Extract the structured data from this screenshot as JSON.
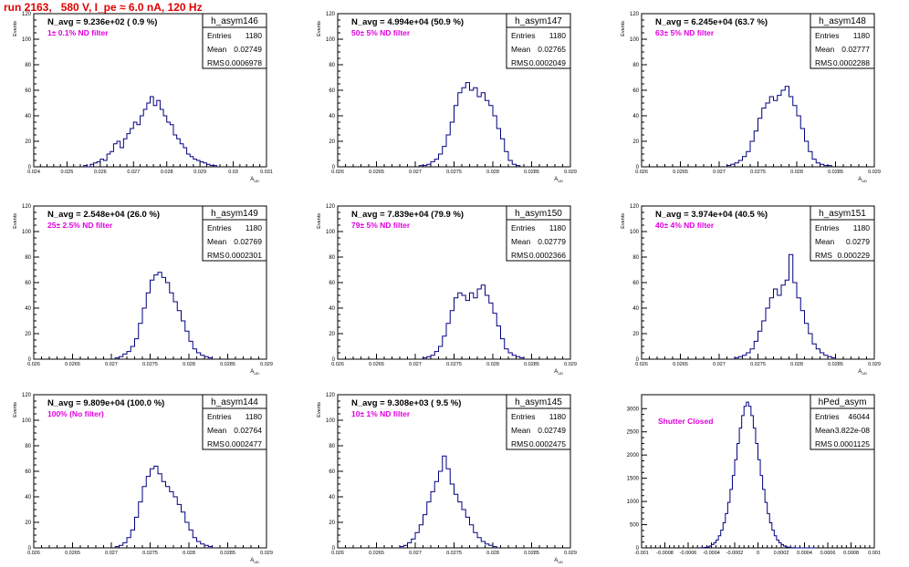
{
  "title": "run 2163,   580 V, I_pe ≈ 6.0 nA, 120 Hz",
  "colors": {
    "title": "#e00000",
    "hist": "#000080",
    "annotation": "#e000e0",
    "frame": "#000000"
  },
  "panels": [
    {
      "name": "h_asym146",
      "entries": "1180",
      "mean": "0.02749",
      "rms": "0.0006978",
      "navg": "N_avg = 9.236e+02 ( 0.9 %)",
      "filter": "1± 0.1% ND filter",
      "ylabel": "Events",
      "xlabel": "A_UD",
      "ymax": 120,
      "yticks": [
        0,
        20,
        40,
        60,
        80,
        100,
        120
      ],
      "xmin": 0.024,
      "xmax": 0.031,
      "xticks": [
        0.024,
        0.025,
        0.026,
        0.027,
        0.028,
        0.029,
        0.03,
        0.031
      ],
      "xtick_labels": [
        "0.024",
        "0.025",
        "0.026",
        "0.027",
        "0.028",
        "0.029",
        "0.03",
        "0.031"
      ],
      "chart_data": {
        "type": "bar",
        "x_start": 0.0255,
        "bin_width": 0.0001,
        "values": [
          1,
          0,
          2,
          3,
          4,
          6,
          5,
          10,
          12,
          18,
          20,
          15,
          22,
          26,
          30,
          35,
          33,
          40,
          45,
          50,
          55,
          48,
          52,
          45,
          40,
          35,
          33,
          25,
          22,
          18,
          15,
          10,
          8,
          6,
          5,
          4,
          3,
          2,
          1,
          1
        ]
      }
    },
    {
      "name": "h_asym147",
      "entries": "1180",
      "mean": "0.02765",
      "rms": "0.0002049",
      "navg": "N_avg = 4.994e+04 (50.9 %)",
      "filter": "50± 5% ND filter",
      "ylabel": "Events",
      "xlabel": "A_UD",
      "ymax": 120,
      "yticks": [
        0,
        20,
        40,
        60,
        80,
        100,
        120
      ],
      "xmin": 0.026,
      "xmax": 0.029,
      "xticks": [
        0.026,
        0.0265,
        0.027,
        0.0275,
        0.028,
        0.0285,
        0.029
      ],
      "xtick_labels": [
        "0.026",
        "0.0265",
        "0.027",
        "0.0275",
        "0.028",
        "0.0285",
        "0.029"
      ],
      "chart_data": {
        "type": "bar",
        "x_start": 0.02705,
        "bin_width": 5e-05,
        "values": [
          1,
          1,
          2,
          4,
          6,
          10,
          16,
          25,
          35,
          48,
          58,
          62,
          66,
          60,
          62,
          55,
          58,
          52,
          48,
          40,
          30,
          22,
          12,
          5,
          2,
          1
        ]
      }
    },
    {
      "name": "h_asym148",
      "entries": "1180",
      "mean": "0.02777",
      "rms": "0.0002288",
      "navg": "N_avg = 6.245e+04 (63.7 %)",
      "filter": "63± 5% ND filter",
      "ylabel": "Events",
      "xlabel": "A_UD",
      "ymax": 120,
      "yticks": [
        0,
        20,
        40,
        60,
        80,
        100,
        120
      ],
      "xmin": 0.026,
      "xmax": 0.029,
      "xticks": [
        0.026,
        0.0265,
        0.027,
        0.0275,
        0.028,
        0.0285,
        0.029
      ],
      "xtick_labels": [
        "0.026",
        "0.0265",
        "0.027",
        "0.0275",
        "0.028",
        "0.0285",
        "0.029"
      ],
      "chart_data": {
        "type": "bar",
        "x_start": 0.0271,
        "bin_width": 5e-05,
        "values": [
          1,
          2,
          3,
          5,
          8,
          12,
          20,
          28,
          38,
          46,
          50,
          55,
          52,
          56,
          60,
          63,
          55,
          48,
          40,
          30,
          20,
          12,
          6,
          3,
          2,
          1,
          1
        ]
      }
    },
    {
      "name": "h_asym149",
      "entries": "1180",
      "mean": "0.02769",
      "rms": "0.0002301",
      "navg": "N_avg = 2.548e+04 (26.0 %)",
      "filter": "25± 2.5% ND filter",
      "ylabel": "Events",
      "xlabel": "A_UD",
      "ymax": 120,
      "yticks": [
        0,
        20,
        40,
        60,
        80,
        100,
        120
      ],
      "xmin": 0.026,
      "xmax": 0.029,
      "xticks": [
        0.026,
        0.0265,
        0.027,
        0.0275,
        0.028,
        0.0285,
        0.029
      ],
      "xtick_labels": [
        "0.026",
        "0.0265",
        "0.027",
        "0.0275",
        "0.028",
        "0.0285",
        "0.029"
      ],
      "chart_data": {
        "type": "bar",
        "x_start": 0.02705,
        "bin_width": 5e-05,
        "values": [
          1,
          2,
          4,
          6,
          10,
          16,
          28,
          40,
          52,
          62,
          66,
          68,
          64,
          60,
          52,
          45,
          38,
          30,
          22,
          14,
          8,
          5,
          3,
          2,
          1
        ]
      }
    },
    {
      "name": "h_asym150",
      "entries": "1180",
      "mean": "0.02779",
      "rms": "0.0002366",
      "navg": "N_avg = 7.839e+04 (79.9 %)",
      "filter": "79± 5% ND filter",
      "ylabel": "Events",
      "xlabel": "A_UD",
      "ymax": 120,
      "yticks": [
        0,
        20,
        40,
        60,
        80,
        100,
        120
      ],
      "xmin": 0.026,
      "xmax": 0.029,
      "xticks": [
        0.026,
        0.0265,
        0.027,
        0.0275,
        0.028,
        0.0285,
        0.029
      ],
      "xtick_labels": [
        "0.026",
        "0.0265",
        "0.027",
        "0.0275",
        "0.028",
        "0.0285",
        "0.029"
      ],
      "chart_data": {
        "type": "bar",
        "x_start": 0.0271,
        "bin_width": 5e-05,
        "values": [
          1,
          2,
          3,
          6,
          10,
          18,
          28,
          38,
          48,
          52,
          50,
          46,
          52,
          48,
          55,
          58,
          50,
          44,
          36,
          26,
          16,
          8,
          5,
          3,
          2,
          1
        ]
      }
    },
    {
      "name": "h_asym151",
      "entries": "1180",
      "mean": "0.0279",
      "rms": "0.000229",
      "navg": "N_avg = 3.974e+04 (40.5 %)",
      "filter": "40± 4% ND filter",
      "ylabel": "Events",
      "xlabel": "A_UD",
      "ymax": 120,
      "yticks": [
        0,
        20,
        40,
        60,
        80,
        100,
        120
      ],
      "xmin": 0.026,
      "xmax": 0.029,
      "xticks": [
        0.026,
        0.0265,
        0.027,
        0.0275,
        0.028,
        0.0285,
        0.029
      ],
      "xtick_labels": [
        "0.026",
        "0.0265",
        "0.027",
        "0.0275",
        "0.028",
        "0.0285",
        "0.029"
      ],
      "chart_data": {
        "type": "bar",
        "x_start": 0.0272,
        "bin_width": 5e-05,
        "values": [
          1,
          2,
          3,
          5,
          8,
          14,
          22,
          30,
          40,
          48,
          55,
          50,
          58,
          62,
          82,
          60,
          48,
          38,
          28,
          20,
          12,
          8,
          5,
          3,
          2,
          1
        ]
      }
    },
    {
      "name": "h_asym144",
      "entries": "1180",
      "mean": "0.02764",
      "rms": "0.0002477",
      "navg": "N_avg = 9.809e+04 (100.0 %)",
      "filter": "100% (No filter)",
      "ylabel": "Events",
      "xlabel": "A_UD",
      "ymax": 120,
      "yticks": [
        0,
        20,
        40,
        60,
        80,
        100,
        120
      ],
      "xmin": 0.026,
      "xmax": 0.029,
      "xticks": [
        0.026,
        0.0265,
        0.027,
        0.0275,
        0.028,
        0.0285,
        0.029
      ],
      "xtick_labels": [
        "0.026",
        "0.0265",
        "0.027",
        "0.0275",
        "0.028",
        "0.0285",
        "0.029"
      ],
      "chart_data": {
        "type": "bar",
        "x_start": 0.02705,
        "bin_width": 5e-05,
        "values": [
          1,
          2,
          4,
          8,
          14,
          24,
          36,
          48,
          56,
          62,
          64,
          58,
          52,
          48,
          44,
          40,
          34,
          28,
          20,
          14,
          8,
          5,
          3,
          2,
          1
        ]
      }
    },
    {
      "name": "h_asym145",
      "entries": "1180",
      "mean": "0.02749",
      "rms": "0.0002475",
      "navg": "N_avg = 9.308e+03 ( 9.5 %)",
      "filter": "10± 1% ND filter",
      "ylabel": "Events",
      "xlabel": "A_UD",
      "ymax": 120,
      "yticks": [
        0,
        20,
        40,
        60,
        80,
        100,
        120
      ],
      "xmin": 0.026,
      "xmax": 0.029,
      "xticks": [
        0.026,
        0.0265,
        0.027,
        0.0275,
        0.028,
        0.0285,
        0.029
      ],
      "xtick_labels": [
        "0.026",
        "0.0265",
        "0.027",
        "0.0275",
        "0.028",
        "0.0285",
        "0.029"
      ],
      "chart_data": {
        "type": "bar",
        "x_start": 0.0268,
        "bin_width": 5e-05,
        "values": [
          1,
          2,
          4,
          7,
          12,
          18,
          26,
          36,
          44,
          52,
          60,
          72,
          62,
          50,
          42,
          36,
          30,
          24,
          18,
          12,
          8,
          5,
          3,
          2,
          1
        ]
      }
    },
    {
      "name": "hPed_asym",
      "entries": "46044",
      "mean": "-3.822e-08",
      "rms": "0.0001125",
      "navg": "",
      "filter": "Shutter Closed",
      "ylabel": "",
      "xlabel": "",
      "ymax": 3300,
      "yticks": [
        0,
        500,
        1000,
        1500,
        2000,
        2500,
        3000
      ],
      "xmin": -0.001,
      "xmax": 0.001,
      "xticks": [
        -0.001,
        -0.0008,
        -0.0006,
        -0.0004,
        -0.0002,
        0,
        0.0002,
        0.0004,
        0.0006,
        0.0008,
        0.001
      ],
      "xtick_labels": [
        "-0.001",
        "-0.0008",
        "-0.0006",
        "-0.0004",
        "-0.0002",
        "0",
        "0.0002",
        "0.0004",
        "0.0006",
        "0.0008",
        "0.001"
      ],
      "chart_data": {
        "type": "bar",
        "x_start": -0.0005,
        "bin_width": 2e-05,
        "values": [
          2,
          5,
          10,
          20,
          40,
          70,
          110,
          170,
          260,
          380,
          540,
          740,
          980,
          1260,
          1560,
          1900,
          2250,
          2580,
          2850,
          3050,
          3140,
          3050,
          2850,
          2580,
          2250,
          1900,
          1560,
          1260,
          980,
          740,
          540,
          380,
          260,
          170,
          110,
          70,
          40,
          20,
          10,
          5,
          2,
          1,
          0,
          0,
          0,
          0,
          0,
          0,
          0,
          0
        ]
      }
    }
  ]
}
